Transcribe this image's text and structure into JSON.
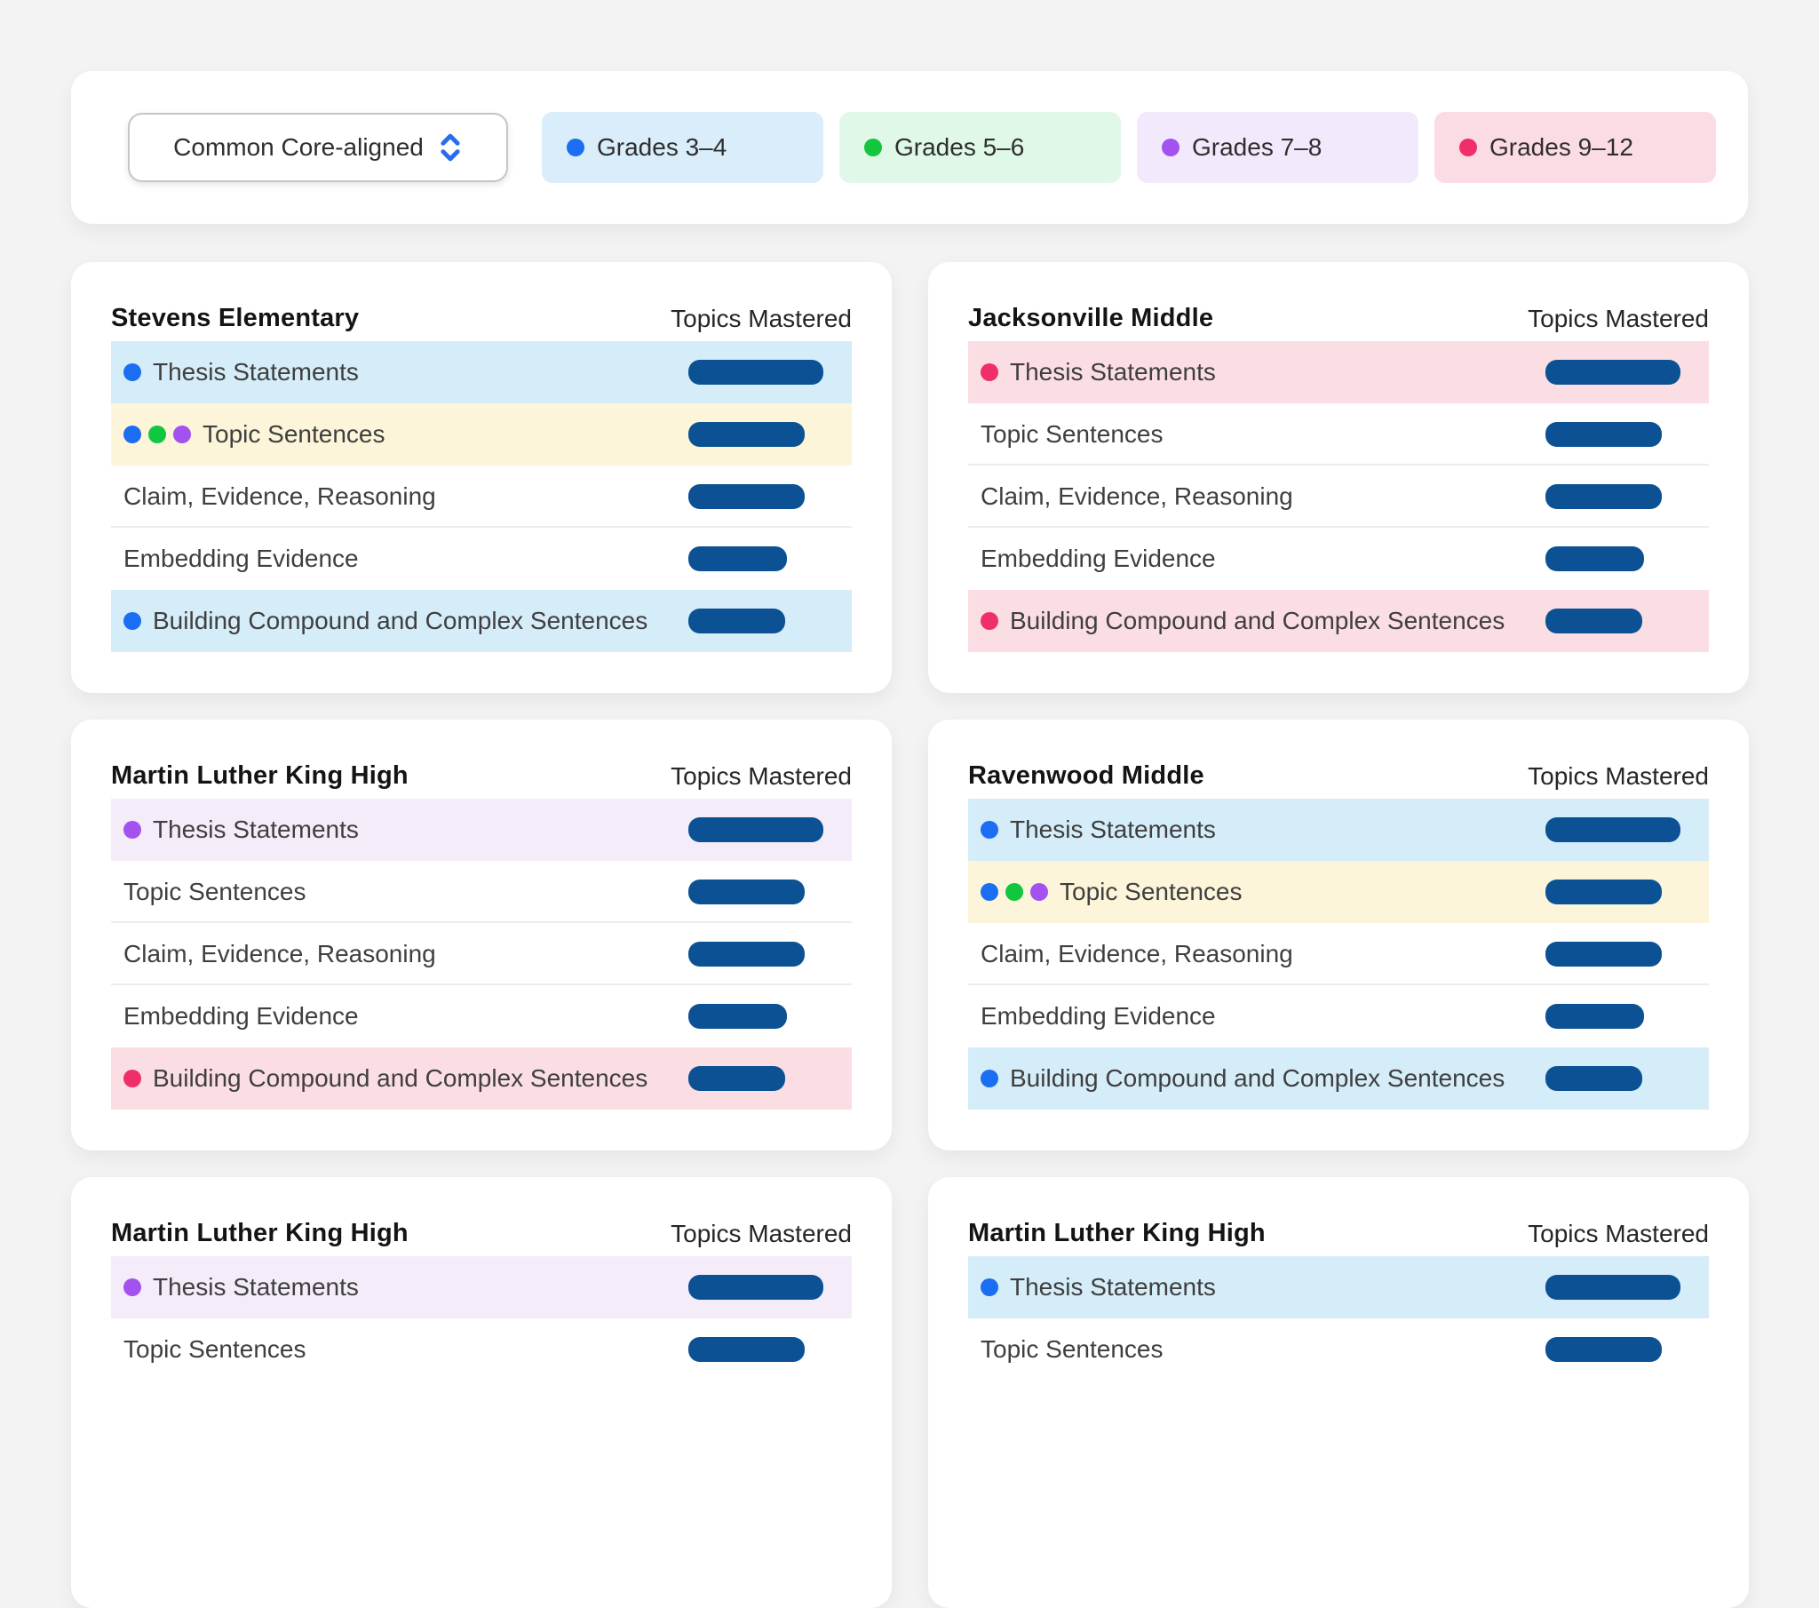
{
  "toolbar": {
    "dropdown": {
      "label": "Common Core-aligned",
      "icon": "chevron-up-down"
    },
    "filters": [
      {
        "label": "Grades 3–4",
        "dot_color": "#1b6df2",
        "bg_color": "#d9edfb"
      },
      {
        "label": "Grades 5–6",
        "dot_color": "#12c63e",
        "bg_color": "#e0f8e7"
      },
      {
        "label": "Grades 7–8",
        "dot_color": "#a351ef",
        "bg_color": "#f3e9fc"
      },
      {
        "label": "Grades 9–12",
        "dot_color": "#f02e69",
        "bg_color": "#fcdce4"
      }
    ]
  },
  "colors": {
    "bar": "#0b5193",
    "dots": {
      "blue": "#1b6df2",
      "green": "#12c63e",
      "purple": "#a351ef",
      "pink": "#f02e69"
    },
    "highlights": {
      "blue": "#d5ecf9",
      "yellow": "#fcf5da",
      "pink": "#fbdde4",
      "purple": "#f5ecfa"
    }
  },
  "cards": [
    {
      "school": "Stevens Elementary",
      "topics_header": "Topics Mastered",
      "rows": [
        {
          "label": "Thesis Statements",
          "dots": [
            "blue"
          ],
          "highlight": "blue",
          "bar_pct": 100
        },
        {
          "label": "Topic Sentences",
          "dots": [
            "blue",
            "green",
            "purple"
          ],
          "highlight": "yellow",
          "bar_pct": 86
        },
        {
          "label": "Claim, Evidence, Reasoning",
          "dots": [],
          "highlight": "",
          "bar_pct": 86
        },
        {
          "label": "Embedding Evidence",
          "dots": [],
          "highlight": "",
          "bar_pct": 73
        },
        {
          "label": "Building Compound and Complex Sentences",
          "dots": [
            "blue"
          ],
          "highlight": "blue",
          "bar_pct": 72
        }
      ]
    },
    {
      "school": "Jacksonville Middle",
      "topics_header": "Topics Mastered",
      "rows": [
        {
          "label": "Thesis Statements",
          "dots": [
            "pink"
          ],
          "highlight": "pink",
          "bar_pct": 100
        },
        {
          "label": "Topic Sentences",
          "dots": [],
          "highlight": "",
          "bar_pct": 86
        },
        {
          "label": "Claim, Evidence, Reasoning",
          "dots": [],
          "highlight": "",
          "bar_pct": 86
        },
        {
          "label": "Embedding Evidence",
          "dots": [],
          "highlight": "",
          "bar_pct": 73
        },
        {
          "label": "Building Compound and Complex Sentences",
          "dots": [
            "pink"
          ],
          "highlight": "pink",
          "bar_pct": 72
        }
      ]
    },
    {
      "school": "Martin Luther King High",
      "topics_header": "Topics Mastered",
      "rows": [
        {
          "label": "Thesis Statements",
          "dots": [
            "purple"
          ],
          "highlight": "purple",
          "bar_pct": 100
        },
        {
          "label": "Topic Sentences",
          "dots": [],
          "highlight": "",
          "bar_pct": 86
        },
        {
          "label": "Claim, Evidence, Reasoning",
          "dots": [],
          "highlight": "",
          "bar_pct": 86
        },
        {
          "label": "Embedding Evidence",
          "dots": [],
          "highlight": "",
          "bar_pct": 73
        },
        {
          "label": "Building Compound and Complex Sentences",
          "dots": [
            "pink"
          ],
          "highlight": "pink",
          "bar_pct": 72
        }
      ]
    },
    {
      "school": "Ravenwood Middle",
      "topics_header": "Topics Mastered",
      "rows": [
        {
          "label": "Thesis Statements",
          "dots": [
            "blue"
          ],
          "highlight": "blue",
          "bar_pct": 100
        },
        {
          "label": "Topic Sentences",
          "dots": [
            "blue",
            "green",
            "purple"
          ],
          "highlight": "yellow",
          "bar_pct": 86
        },
        {
          "label": "Claim, Evidence, Reasoning",
          "dots": [],
          "highlight": "",
          "bar_pct": 86
        },
        {
          "label": "Embedding Evidence",
          "dots": [],
          "highlight": "",
          "bar_pct": 73
        },
        {
          "label": "Building Compound and Complex Sentences",
          "dots": [
            "blue"
          ],
          "highlight": "blue",
          "bar_pct": 72
        }
      ]
    },
    {
      "school": "Martin Luther King High",
      "topics_header": "Topics Mastered",
      "rows": [
        {
          "label": "Thesis Statements",
          "dots": [
            "purple"
          ],
          "highlight": "purple",
          "bar_pct": 100
        },
        {
          "label": "Topic Sentences",
          "dots": [],
          "highlight": "",
          "bar_pct": 86
        }
      ]
    },
    {
      "school": "Martin Luther King High",
      "topics_header": "Topics Mastered",
      "rows": [
        {
          "label": "Thesis Statements",
          "dots": [
            "blue"
          ],
          "highlight": "blue",
          "bar_pct": 100
        },
        {
          "label": "Topic Sentences",
          "dots": [],
          "highlight": "",
          "bar_pct": 86
        }
      ]
    }
  ]
}
